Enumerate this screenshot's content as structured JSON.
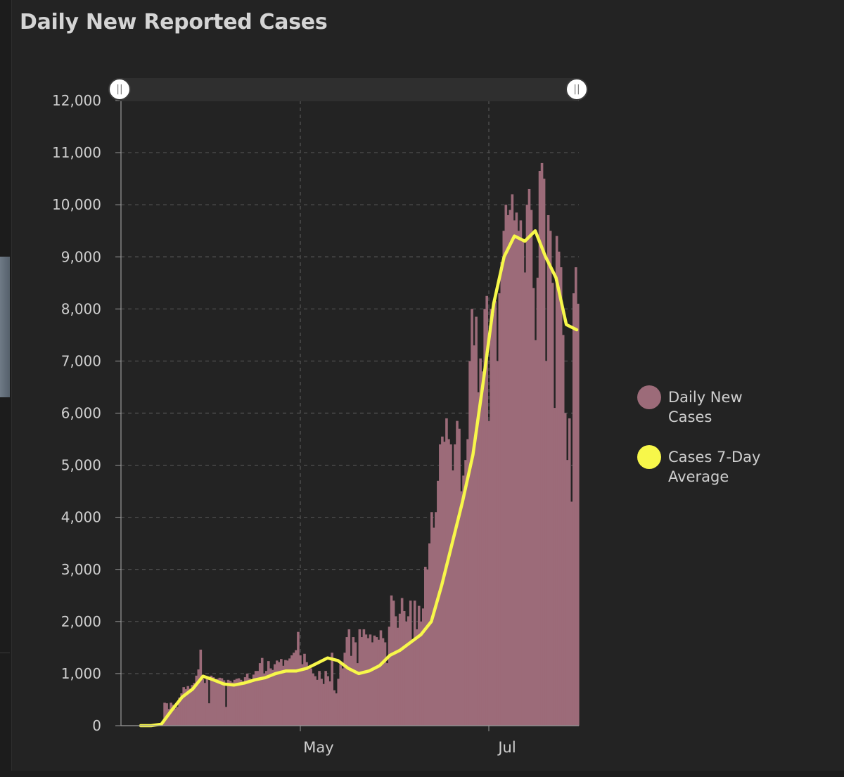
{
  "title": "Daily New Reported Cases",
  "colors": {
    "bars": "#9c6b79",
    "average": "#f7f74a",
    "grid": "#555555",
    "axis": "#9a9a9a",
    "slider_track": "#2f2f2f"
  },
  "chart_data": {
    "type": "bar",
    "title": "Daily New Reported Cases",
    "xlabel": "",
    "ylabel": "",
    "ylim": [
      0,
      12000
    ],
    "yticks": [
      "0",
      "1,000",
      "2,000",
      "3,000",
      "4,000",
      "5,000",
      "6,000",
      "7,000",
      "8,000",
      "9,000",
      "10,000",
      "11,000",
      "12,000"
    ],
    "xticks": [
      {
        "label": "May",
        "day": 37
      },
      {
        "label": "Jul",
        "day": 98
      }
    ],
    "grid": true,
    "legend_position": "right",
    "series": [
      {
        "name": "Daily New Cases",
        "type": "bar",
        "values": [
          0,
          0,
          0,
          0,
          0,
          0,
          0,
          0,
          0,
          0,
          0,
          0,
          0,
          0,
          0,
          0,
          0,
          0,
          20,
          60,
          440,
          430,
          320,
          440,
          400,
          330,
          360,
          540,
          620,
          740,
          700,
          760,
          710,
          780,
          820,
          960,
          1080,
          1460,
          900,
          820,
          950,
          430,
          960,
          930,
          880,
          900,
          920,
          910,
          870,
          360,
          880,
          860,
          830,
          880,
          900,
          910,
          880,
          850,
          930,
          1000,
          910,
          880,
          980,
          1050,
          1050,
          1200,
          1300,
          1000,
          1050,
          1240,
          1100,
          1070,
          1180,
          1250,
          1220,
          1280,
          1150,
          1260,
          1250,
          1290,
          1350,
          1400,
          1450,
          1800,
          1350,
          1180,
          1380,
          1220,
          1080,
          1100,
          1000,
          950,
          880,
          1050,
          900,
          800,
          1050,
          950,
          850,
          1400,
          680,
          620,
          900,
          1180,
          1100,
          1400,
          1700,
          1850,
          1340,
          1700,
          1600,
          1200,
          1850,
          1700,
          1850,
          1750,
          1680,
          1750,
          1600,
          1730,
          1700,
          1650,
          1830,
          1680,
          1600,
          1200,
          1900,
          2500,
          2400,
          2100,
          1880,
          2150,
          2450,
          2200,
          2000,
          2100,
          2400,
          1600,
          2400,
          1850,
          2300,
          2000,
          2250,
          3050,
          3000,
          3500,
          4100,
          3800,
          4100,
          4700,
          5400,
          5550,
          5450,
          5900,
          5500,
          5400,
          4900,
          5400,
          5850,
          5700,
          4500,
          4800,
          5100,
          5500,
          7000,
          8000,
          7300,
          7850,
          6400,
          7050,
          6800,
          8000,
          8250,
          5850,
          8000,
          7900,
          8150,
          7000,
          8300,
          8900,
          9500,
          10000,
          9800,
          9900,
          10200,
          9700,
          9850,
          9500,
          9700,
          9300,
          8700,
          10000,
          10300,
          9900,
          8400,
          7400,
          8600,
          10650,
          10800,
          10500,
          7000,
          9800,
          9500,
          8500,
          6100,
          9400,
          9100,
          8800,
          7500,
          6000,
          5100,
          5900,
          4300,
          8300,
          8800,
          8100
        ]
      },
      {
        "name": "Cases 7-Day Average",
        "type": "line",
        "points": [
          [
            0,
            0
          ],
          [
            10,
            0
          ],
          [
            20,
            30
          ],
          [
            30,
            300
          ],
          [
            40,
            550
          ],
          [
            50,
            700
          ],
          [
            60,
            950
          ],
          [
            70,
            880
          ],
          [
            80,
            800
          ],
          [
            90,
            780
          ],
          [
            100,
            820
          ],
          [
            110,
            880
          ],
          [
            120,
            920
          ],
          [
            130,
            1000
          ],
          [
            140,
            1050
          ],
          [
            150,
            1050
          ],
          [
            160,
            1100
          ],
          [
            170,
            1200
          ],
          [
            180,
            1300
          ],
          [
            190,
            1250
          ],
          [
            200,
            1100
          ],
          [
            210,
            1000
          ],
          [
            220,
            1050
          ],
          [
            230,
            1150
          ],
          [
            240,
            1350
          ],
          [
            250,
            1450
          ],
          [
            260,
            1600
          ],
          [
            270,
            1750
          ],
          [
            280,
            2000
          ],
          [
            290,
            2700
          ],
          [
            300,
            3500
          ],
          [
            310,
            4300
          ],
          [
            320,
            5200
          ],
          [
            330,
            6600
          ],
          [
            340,
            8100
          ],
          [
            350,
            9000
          ],
          [
            360,
            9400
          ],
          [
            370,
            9300
          ],
          [
            380,
            9500
          ],
          [
            390,
            9000
          ],
          [
            400,
            8600
          ],
          [
            410,
            7700
          ],
          [
            420,
            7600
          ]
        ],
        "points_unit": "index-over-420"
      }
    ]
  },
  "legend": {
    "items": [
      {
        "label": "Daily New Cases",
        "color": "#9c6b79"
      },
      {
        "label": "Cases 7-Day Average",
        "color": "#f7f74a"
      }
    ]
  },
  "slider": {
    "handle_glyph": "||"
  }
}
